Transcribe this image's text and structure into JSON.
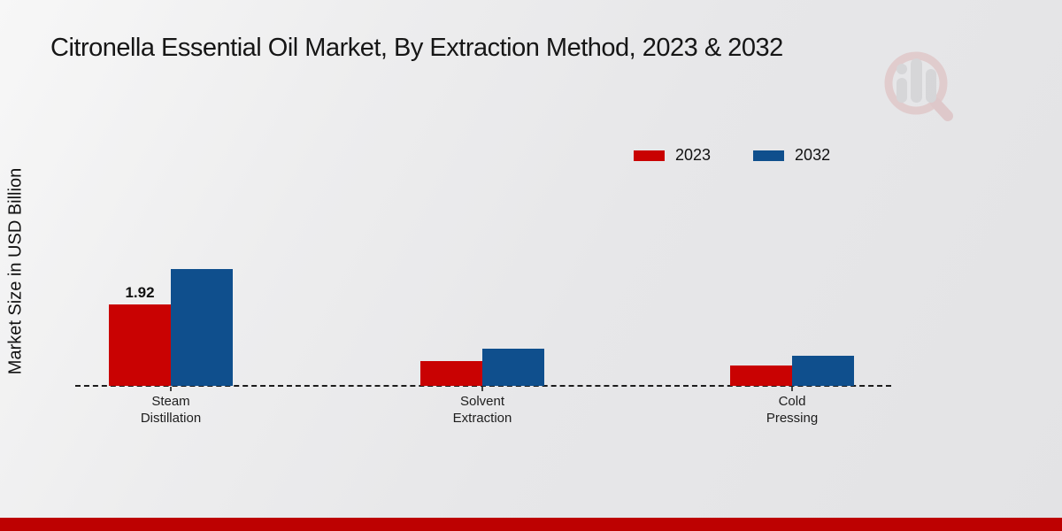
{
  "title": "Citronella Essential Oil Market, By Extraction Method, 2023 & 2032",
  "watermark": "market-research-magnifier-logo",
  "brand": {
    "footer_color": "#bd0101",
    "background_color": "#e7e7e9"
  },
  "chart_data": {
    "type": "bar",
    "title": "Citronella Essential Oil Market, By Extraction Method, 2023 & 2032",
    "categories": [
      "Steam Distillation",
      "Solvent Extraction",
      "Cold Pressing"
    ],
    "series": [
      {
        "name": "2023",
        "color": "#c90202",
        "values": [
          1.92,
          0.58,
          0.48
        ]
      },
      {
        "name": "2032",
        "color": "#0f4f8d",
        "values": [
          2.75,
          0.88,
          0.71
        ]
      }
    ],
    "annotations": [
      {
        "series_index": 0,
        "category_index": 0,
        "text": "1.92"
      }
    ],
    "xlabel": "",
    "ylabel": "Market Size in USD Billion",
    "ylim": [
      0,
      3.2
    ],
    "grid": false,
    "baseline_style": "dashed",
    "y_ticks_visible": false,
    "legend_position": "top-right"
  }
}
